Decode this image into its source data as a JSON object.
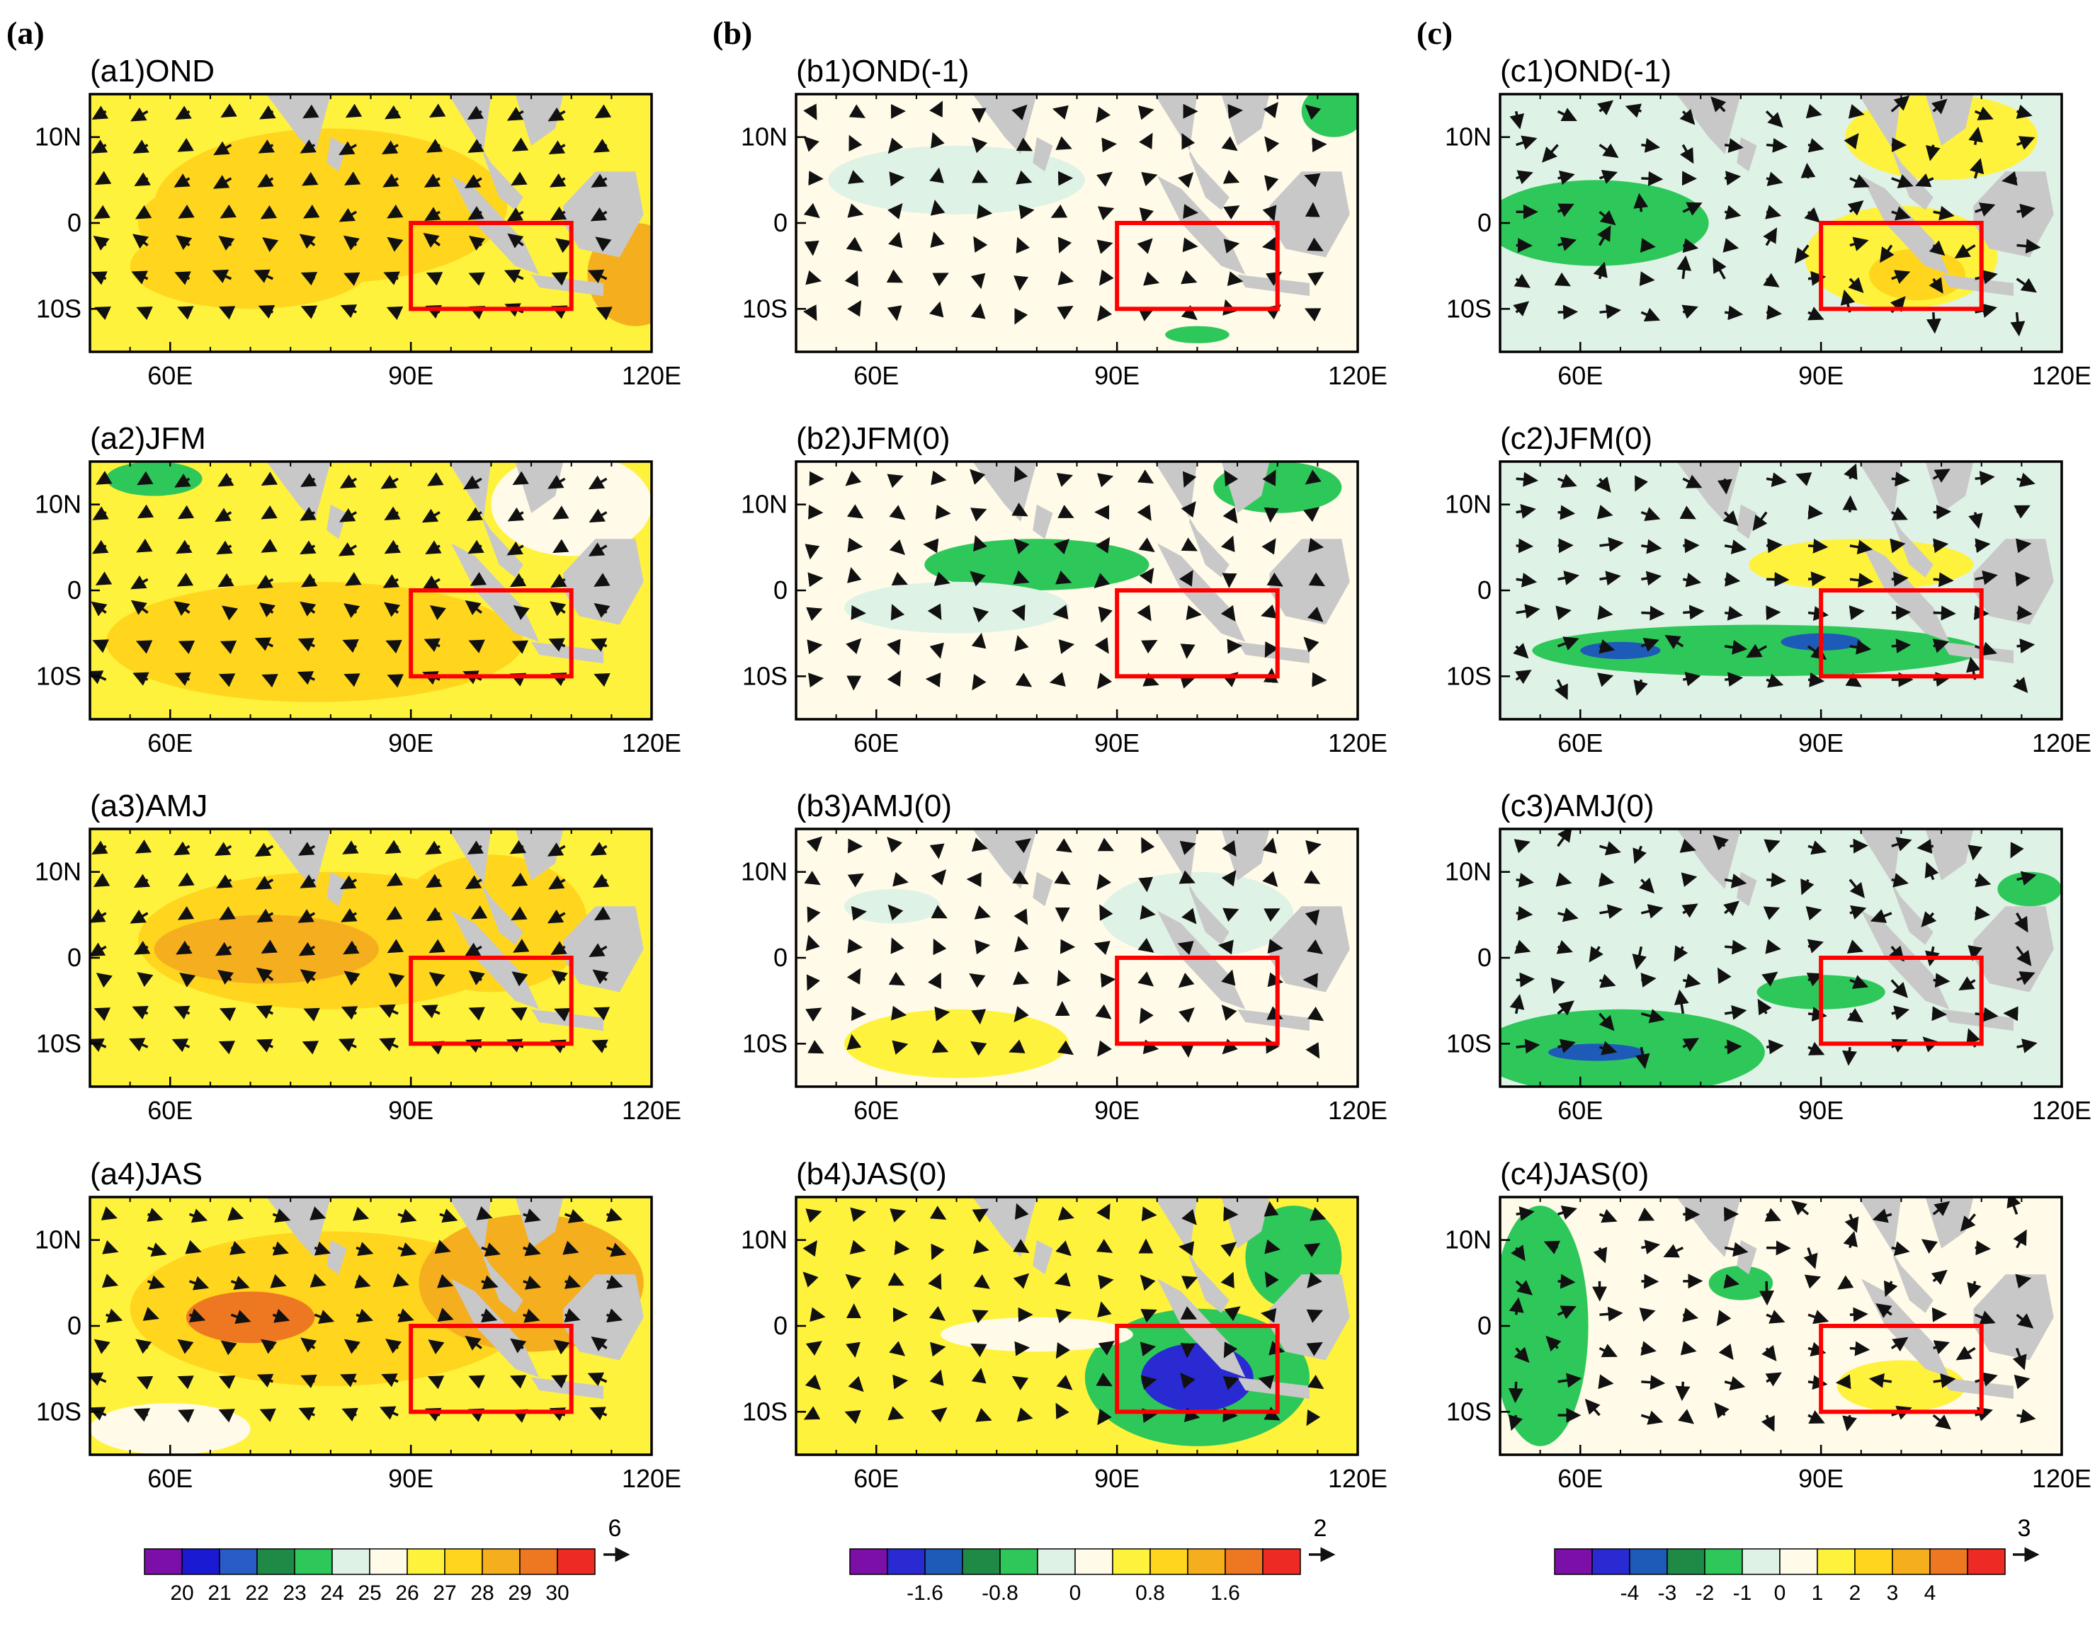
{
  "colors": {
    "land": "#c8c8c8",
    "box": "#ff0000",
    "sst_palette": [
      "#7b0fa8",
      "#1a1ad2",
      "#2a5cc8",
      "#1e8a46",
      "#2ec85a",
      "#dff2e6",
      "#fffbe8",
      "#fff23c",
      "#ffd51e",
      "#f5ae1e",
      "#ee7822",
      "#ee2a24"
    ],
    "anom_palette": [
      "#7b0fa8",
      "#2a2ad2",
      "#1e5ab8",
      "#1e8a46",
      "#2ec85a",
      "#dff2e6",
      "#fffbe8",
      "#fff23c",
      "#ffd51e",
      "#f5ae1e",
      "#ee7822",
      "#ee2a24"
    ]
  },
  "columns": [
    {
      "label": "(a)",
      "colorbar_labels": [
        "20",
        "21",
        "22",
        "23",
        "24",
        "25",
        "26",
        "27",
        "28",
        "29",
        "30"
      ],
      "ref_vector": "6"
    },
    {
      "label": "(b)",
      "colorbar_labels": [
        "-1.6",
        "-0.8",
        "0",
        "0.8",
        "1.6"
      ],
      "ref_vector": "2"
    },
    {
      "label": "(c)",
      "colorbar_labels": [
        "-4",
        "-3",
        "-2",
        "-1",
        "0",
        "1",
        "2",
        "3",
        "4"
      ],
      "ref_vector": "3"
    }
  ],
  "panels": [
    [
      "(a1)OND",
      "(a2)JFM",
      "(a3)AMJ",
      "(a4)JAS"
    ],
    [
      "(b1)OND(-1)",
      "(b2)JFM(0)",
      "(b3)AMJ(0)",
      "(b4)JAS(0)"
    ],
    [
      "(c1)OND(-1)",
      "(c2)JFM(0)",
      "(c3)AMJ(0)",
      "(c4)JAS(0)"
    ]
  ],
  "axes": {
    "x_ticks": [
      "60E",
      "90E",
      "120E"
    ],
    "y_ticks": [
      "10N",
      "0",
      "10S"
    ],
    "lon_range": [
      50,
      120
    ],
    "lat_range": [
      -15,
      15
    ]
  },
  "chart_data": {
    "type": "map",
    "description_free": true,
    "box_region": {
      "lon": [
        90,
        110
      ],
      "lat": [
        -10,
        0
      ]
    },
    "x_tick_values": [
      60,
      90,
      120
    ],
    "y_tick_values": [
      10,
      0,
      -10
    ]
  }
}
